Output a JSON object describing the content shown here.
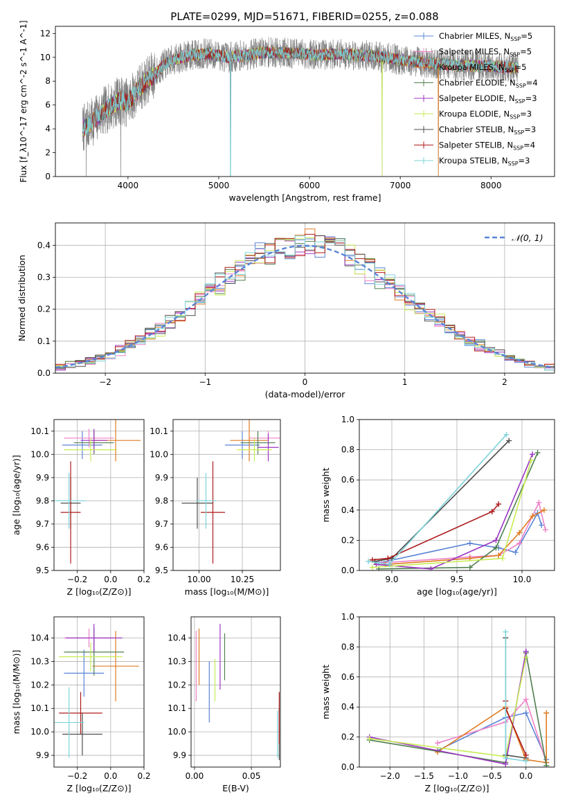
{
  "colors": {
    "chabrier_miles": "#5b84d6",
    "salpeter_miles": "#ee82c8",
    "kroupa_miles": "#df7b21",
    "chabrier_elodie": "#4f7f4f",
    "salpeter_elodie": "#9b35c2",
    "kroupa_elodie": "#c8eb55",
    "chabrier_stelib": "#4d4d4d",
    "salpeter_stelib": "#ad1a1a",
    "kroupa_stelib": "#7ed4da",
    "data_spectrum": "#808080",
    "normal_curve": "#5b84d6"
  },
  "chart_data": [
    {
      "id": "spectrum",
      "type": "line",
      "title": "PLATE=0299, MJD=51671, FIBERID=0255, z=0.088",
      "xlabel": "wavelength [Angstrom, rest frame]",
      "ylabel": "Flux [f_λ10^-17 erg cm^-2 s^-1 A^-1]",
      "xlim": [
        3200,
        8700
      ],
      "ylim": [
        0,
        12.6
      ],
      "xticks": [
        "4000",
        "5000",
        "6000",
        "7000",
        "8000"
      ],
      "yticks": [
        "0",
        "2",
        "4",
        "6",
        "8",
        "10",
        "12"
      ],
      "grid": false,
      "legend_position": "right",
      "continuum": {
        "x": [
          3500,
          3600,
          3700,
          3800,
          3900,
          4000,
          4100,
          4200,
          4300,
          4400,
          4500,
          4700,
          4900,
          5100,
          5300,
          5500,
          5700,
          5900,
          6100,
          6300,
          6500,
          6700,
          6900,
          7100,
          7300,
          7500,
          7700,
          7900,
          8100,
          8300
        ],
        "y": [
          4.0,
          4.5,
          5.3,
          5.8,
          6.4,
          6.2,
          7.2,
          8.0,
          8.6,
          9.4,
          9.8,
          10.2,
          10.3,
          10.0,
          10.2,
          10.4,
          10.4,
          10.3,
          10.2,
          10.3,
          10.2,
          10.1,
          9.9,
          9.7,
          9.5,
          9.4,
          9.3,
          9.3,
          9.2,
          9.1
        ]
      },
      "legend": [
        {
          "key": "chabrier_miles",
          "label": "Chabrier MILES, N",
          "sub": "SSP",
          "tail": "=5"
        },
        {
          "key": "salpeter_miles",
          "label": "Salpeter MILES, N",
          "sub": "SSP",
          "tail": "=5"
        },
        {
          "key": "kroupa_miles",
          "label": "Kroupa MILES, N",
          "sub": "SSP",
          "tail": "=5"
        },
        {
          "key": "chabrier_elodie",
          "label": "Chabrier ELODIE, N",
          "sub": "SSP",
          "tail": "=4"
        },
        {
          "key": "salpeter_elodie",
          "label": "Salpeter ELODIE, N",
          "sub": "SSP",
          "tail": "=3"
        },
        {
          "key": "kroupa_elodie",
          "label": "Kroupa ELODIE, N",
          "sub": "SSP",
          "tail": "=3"
        },
        {
          "key": "chabrier_stelib",
          "label": "Chabrier STELIB, N",
          "sub": "SSP",
          "tail": "=3"
        },
        {
          "key": "salpeter_stelib",
          "label": "Salpeter STELIB, N",
          "sub": "SSP",
          "tail": "=4"
        },
        {
          "key": "kroupa_stelib",
          "label": "Kroupa STELIB, N",
          "sub": "SSP",
          "tail": "=3"
        }
      ]
    },
    {
      "id": "residuals",
      "type": "line",
      "xlabel": "(data-model)/error",
      "ylabel": "Normed distribution",
      "xlim": [
        -2.5,
        2.5
      ],
      "ylim": [
        0,
        0.47
      ],
      "xticks": [
        "−2",
        "−1",
        "0",
        "1",
        "2"
      ],
      "yticks": [
        "0.0",
        "0.1",
        "0.2",
        "0.3",
        "0.4"
      ],
      "grid": true,
      "legend_position": "top-right",
      "legend_label": "𝒩(0, 1)",
      "bin_width": 0.1,
      "bin_start": -2.5
    },
    {
      "id": "age_vs_z",
      "type": "scatter",
      "xlabel": "Z [log₁₀(Z/Z⊙)]",
      "ylabel": "age  [log₁₀(age/yr)]",
      "xlim": [
        -0.34,
        0.2
      ],
      "ylim": [
        9.5,
        10.15
      ],
      "xticks": [
        "−0.2",
        "0.0",
        "0.2"
      ],
      "yticks": [
        "9.5",
        "9.6",
        "9.7",
        "9.8",
        "9.9",
        "10.0",
        "10.1"
      ],
      "grid": true,
      "points": [
        {
          "key": "chabrier_miles",
          "x": -0.17,
          "xerr": 0.12,
          "y": 10.04,
          "yerr": 0.06
        },
        {
          "key": "salpeter_miles",
          "x": -0.13,
          "xerr": 0.15,
          "y": 10.07,
          "yerr": 0.04
        },
        {
          "key": "kroupa_miles",
          "x": 0.03,
          "xerr": 0.15,
          "y": 10.06,
          "yerr": 0.09
        },
        {
          "key": "chabrier_elodie",
          "x": -0.1,
          "xerr": 0.12,
          "y": 10.05,
          "yerr": 0.05
        },
        {
          "key": "salpeter_elodie",
          "x": -0.1,
          "xerr": 0.08,
          "y": 10.06,
          "yerr": 0.05
        },
        {
          "key": "kroupa_elodie",
          "x": -0.12,
          "xerr": 0.16,
          "y": 10.02,
          "yerr": 0.05
        },
        {
          "key": "chabrier_stelib",
          "x": -0.24,
          "xerr": 0.06,
          "y": 9.79,
          "yerr": 0.11
        },
        {
          "key": "salpeter_stelib",
          "x": -0.24,
          "xerr": 0.06,
          "y": 9.75,
          "yerr": 0.22
        },
        {
          "key": "kroupa_stelib",
          "x": -0.25,
          "xerr": 0.1,
          "y": 9.8,
          "yerr": 0.12
        }
      ]
    },
    {
      "id": "age_vs_mass",
      "type": "scatter",
      "xlabel": "mass [log₁₀(M/M⊙)]",
      "ylabel": "",
      "xlim": [
        9.85,
        10.47
      ],
      "ylim": [
        9.5,
        10.15
      ],
      "xticks": [
        "10.00",
        "10.25"
      ],
      "yticks": [
        "9.5",
        "9.6",
        "9.7",
        "9.8",
        "9.9",
        "10.0",
        "10.1"
      ],
      "grid": true,
      "points": [
        {
          "key": "chabrier_miles",
          "x": 10.25,
          "xerr": 0.1,
          "y": 10.04,
          "yerr": 0.06
        },
        {
          "key": "salpeter_miles",
          "x": 10.4,
          "xerr": 0.11,
          "y": 10.07,
          "yerr": 0.03
        },
        {
          "key": "kroupa_miles",
          "x": 10.29,
          "xerr": 0.11,
          "y": 10.06,
          "yerr": 0.09
        },
        {
          "key": "chabrier_elodie",
          "x": 10.34,
          "xerr": 0.1,
          "y": 10.05,
          "yerr": 0.05
        },
        {
          "key": "salpeter_elodie",
          "x": 10.4,
          "xerr": 0.06,
          "y": 10.03,
          "yerr": 0.06
        },
        {
          "key": "kroupa_elodie",
          "x": 10.32,
          "xerr": 0.1,
          "y": 10.02,
          "yerr": 0.05
        },
        {
          "key": "chabrier_stelib",
          "x": 9.99,
          "xerr": 0.09,
          "y": 9.79,
          "yerr": 0.11
        },
        {
          "key": "salpeter_stelib",
          "x": 10.08,
          "xerr": 0.07,
          "y": 9.75,
          "yerr": 0.22
        },
        {
          "key": "kroupa_stelib",
          "x": 10.04,
          "xerr": 0.06,
          "y": 9.8,
          "yerr": 0.12
        }
      ]
    },
    {
      "id": "weight_vs_age",
      "type": "line",
      "xlabel": "age  [log₁₀(age/yr)]",
      "ylabel": "mass weight",
      "xlim": [
        8.75,
        10.25
      ],
      "ylim": [
        0,
        1.0
      ],
      "xticks": [
        "9.0",
        "9.5",
        "10.0"
      ],
      "yticks": [
        "0.0",
        "0.2",
        "0.4",
        "0.6",
        "0.8",
        "1.0"
      ],
      "grid": true,
      "series": [
        {
          "key": "chabrier_miles",
          "x": [
            8.9,
            9.6,
            9.82,
            9.95,
            10.12,
            10.15
          ],
          "y": [
            0.05,
            0.18,
            0.15,
            0.12,
            0.38,
            0.3
          ]
        },
        {
          "key": "salpeter_miles",
          "x": [
            8.92,
            9.6,
            9.82,
            9.98,
            10.13,
            10.18
          ],
          "y": [
            0.05,
            0.09,
            0.1,
            0.18,
            0.45,
            0.27
          ]
        },
        {
          "key": "kroupa_miles",
          "x": [
            8.95,
            9.6,
            9.82,
            9.98,
            10.08,
            10.17
          ],
          "y": [
            0.04,
            0.08,
            0.1,
            0.25,
            0.36,
            0.4
          ]
        },
        {
          "key": "chabrier_elodie",
          "x": [
            8.9,
            9.6,
            9.8,
            10.12
          ],
          "y": [
            0.01,
            0.02,
            0.15,
            0.78
          ]
        },
        {
          "key": "salpeter_elodie",
          "x": [
            8.88,
            9.3,
            9.8,
            10.08
          ],
          "y": [
            0.04,
            0.01,
            0.2,
            0.77
          ]
        },
        {
          "key": "kroupa_elodie",
          "x": [
            8.85,
            9.85,
            10.07
          ],
          "y": [
            0.02,
            0.08,
            0.73
          ]
        },
        {
          "key": "chabrier_stelib",
          "x": [
            8.87,
            9.0,
            9.9
          ],
          "y": [
            0.06,
            0.08,
            0.86
          ]
        },
        {
          "key": "salpeter_stelib",
          "x": [
            8.85,
            8.97,
            9.77,
            9.82
          ],
          "y": [
            0.07,
            0.08,
            0.39,
            0.44
          ]
        },
        {
          "key": "kroupa_stelib",
          "x": [
            8.82,
            8.98,
            9.88
          ],
          "y": [
            0.06,
            0.04,
            0.9
          ]
        }
      ]
    },
    {
      "id": "mass_vs_z",
      "type": "scatter",
      "xlabel": "Z [log₁₀(Z/Z⊙)]",
      "ylabel": "mass [log₁₀(M/M⊙)]",
      "xlim": [
        -0.34,
        0.2
      ],
      "ylim": [
        9.85,
        10.49
      ],
      "xticks": [
        "−0.2",
        "0.0",
        "0.2"
      ],
      "yticks": [
        "9.9",
        "10.0",
        "10.1",
        "10.2",
        "10.3",
        "10.4"
      ],
      "grid": true,
      "points": [
        {
          "key": "chabrier_miles",
          "x": -0.16,
          "xerr": 0.12,
          "y": 10.25,
          "yerr": 0.1
        },
        {
          "key": "salpeter_miles",
          "x": -0.13,
          "xerr": 0.15,
          "y": 10.4,
          "yerr": 0.04
        },
        {
          "key": "kroupa_miles",
          "x": 0.03,
          "xerr": 0.14,
          "y": 10.28,
          "yerr": 0.15
        },
        {
          "key": "chabrier_elodie",
          "x": -0.1,
          "xerr": 0.18,
          "y": 10.34,
          "yerr": 0.1
        },
        {
          "key": "salpeter_elodie",
          "x": -0.1,
          "xerr": 0.17,
          "y": 10.4,
          "yerr": 0.06
        },
        {
          "key": "kroupa_elodie",
          "x": -0.12,
          "xerr": 0.19,
          "y": 10.32,
          "yerr": 0.06
        },
        {
          "key": "chabrier_stelib",
          "x": -0.17,
          "xerr": 0.12,
          "y": 9.99,
          "yerr": 0.09
        },
        {
          "key": "salpeter_stelib",
          "x": -0.18,
          "xerr": 0.13,
          "y": 10.08,
          "yerr": 0.09
        },
        {
          "key": "kroupa_stelib",
          "x": -0.25,
          "xerr": 0.09,
          "y": 10.04,
          "yerr": 0.15
        }
      ]
    },
    {
      "id": "mass_vs_ebv",
      "type": "scatter",
      "xlabel": "E(B-V)",
      "ylabel": "",
      "xlim": [
        -0.003,
        0.0755
      ],
      "ylim": [
        9.85,
        10.49
      ],
      "xticks": [
        "0.00",
        "0.05"
      ],
      "yticks": [
        "9.9",
        "10.0",
        "10.1",
        "10.2",
        "10.3",
        "10.4"
      ],
      "grid": true,
      "points": [
        {
          "key": "chabrier_miles",
          "x": 0.013,
          "xerr": 0,
          "y": 10.17,
          "yerr": 0.13
        },
        {
          "key": "salpeter_miles",
          "x": 0.0015,
          "xerr": 0,
          "y": 10.28,
          "yerr": 0.15
        },
        {
          "key": "kroupa_miles",
          "x": 0.004,
          "xerr": 0,
          "y": 10.32,
          "yerr": 0.12
        },
        {
          "key": "chabrier_elodie",
          "x": 0.0265,
          "xerr": 0,
          "y": 10.32,
          "yerr": 0.1
        },
        {
          "key": "salpeter_elodie",
          "x": 0.0225,
          "xerr": 0,
          "y": 10.32,
          "yerr": 0.14
        },
        {
          "key": "kroupa_elodie",
          "x": 0.018,
          "xerr": 0,
          "y": 10.22,
          "yerr": 0.09
        },
        {
          "key": "chabrier_stelib",
          "x": 0.0745,
          "xerr": 0,
          "y": 9.99,
          "yerr": 0.11
        },
        {
          "key": "salpeter_stelib",
          "x": 0.0745,
          "xerr": 0,
          "y": 10.06,
          "yerr": 0.11
        },
        {
          "key": "kroupa_stelib",
          "x": 0.073,
          "xerr": 0,
          "y": 9.99,
          "yerr": 0.1
        }
      ]
    },
    {
      "id": "weight_vs_z",
      "type": "line",
      "xlabel": "Z [log₁₀(Z/Z⊙)]",
      "ylabel": "mass weight",
      "xlim": [
        -2.45,
        0.42
      ],
      "ylim": [
        0,
        1.0
      ],
      "xticks": [
        "−2.0",
        "−1.5",
        "−1.0",
        "−0.5",
        "0.0"
      ],
      "yticks": [
        "0.0",
        "0.2",
        "0.4",
        "0.6",
        "0.8",
        "1.0"
      ],
      "grid": true,
      "series": [
        {
          "key": "chabrier_miles",
          "x": [
            -1.3,
            -0.3,
            0.0,
            0.3
          ],
          "y": [
            0.11,
            0.33,
            0.36,
            0.05
          ]
        },
        {
          "key": "salpeter_miles",
          "x": [
            -1.3,
            -0.3,
            0.0,
            0.3
          ],
          "y": [
            0.16,
            0.3,
            0.45,
            0.03
          ]
        },
        {
          "key": "kroupa_miles",
          "x": [
            -1.3,
            -0.3,
            0.0,
            0.3,
            0.3
          ],
          "y": [
            0.1,
            0.4,
            0.05,
            0.03,
            0.36
          ]
        },
        {
          "key": "chabrier_elodie",
          "x": [
            -2.3,
            -0.3,
            0.0,
            0.3
          ],
          "y": [
            0.18,
            0.03,
            0.76,
            0.01
          ]
        },
        {
          "key": "salpeter_elodie",
          "x": [
            -2.3,
            -0.3,
            0.0
          ],
          "y": [
            0.2,
            0.02,
            0.77
          ]
        },
        {
          "key": "kroupa_elodie",
          "x": [
            -2.3,
            -0.3,
            0.0
          ],
          "y": [
            0.19,
            0.07,
            0.73
          ]
        },
        {
          "key": "chabrier_stelib",
          "x": [
            -0.3,
            -0.3,
            0.0
          ],
          "y": [
            0.86,
            0.08,
            0.06
          ]
        },
        {
          "key": "salpeter_stelib",
          "x": [
            -0.3,
            -0.3,
            0.0
          ],
          "y": [
            0.44,
            0.39,
            0.08
          ]
        },
        {
          "key": "kroupa_stelib",
          "x": [
            -0.3,
            -0.3,
            0.0
          ],
          "y": [
            0.9,
            0.06,
            0.04
          ]
        }
      ]
    }
  ]
}
